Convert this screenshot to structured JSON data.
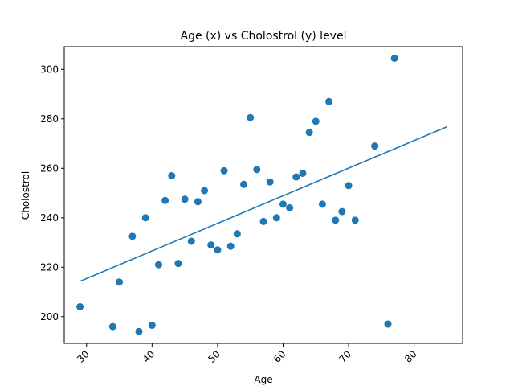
{
  "chart_data": {
    "type": "scatter",
    "title": "Age (x) vs Cholostrol (y) level",
    "xlabel": "Age",
    "ylabel": "Cholostrol",
    "xlim": [
      26.6,
      87.4
    ],
    "ylim": [
      189.2,
      309.2
    ],
    "x_ticks": [
      30,
      40,
      50,
      60,
      70,
      80
    ],
    "y_ticks": [
      200,
      220,
      240,
      260,
      280,
      300
    ],
    "x_tick_rotation": 45,
    "grid": false,
    "marker_color": "#1f77b4",
    "line_color": "#1f77b4",
    "series": [
      {
        "type": "scatter",
        "x": [
          29,
          34,
          35,
          37,
          38,
          39,
          40,
          41,
          42,
          43,
          44,
          45,
          46,
          47,
          48,
          49,
          50,
          51,
          52,
          53,
          54,
          55,
          56,
          57,
          58,
          59,
          60,
          61,
          62,
          63,
          64,
          65,
          66,
          67,
          68,
          69,
          70,
          71,
          74,
          76,
          77
        ],
        "y": [
          204,
          196,
          214,
          232.5,
          194,
          240,
          196.5,
          221,
          247,
          257,
          221.5,
          247.5,
          230.5,
          246.5,
          251,
          229,
          227,
          259,
          228.5,
          233.5,
          253.5,
          280.5,
          259.5,
          238.5,
          254.5,
          240,
          245.5,
          244,
          256.5,
          258,
          274.5,
          279,
          245.5,
          287,
          239,
          242.5,
          253,
          239,
          269,
          197,
          304.5
        ]
      },
      {
        "type": "line",
        "x": [
          29,
          85
        ],
        "y": [
          214.3,
          276.8
        ]
      }
    ]
  }
}
